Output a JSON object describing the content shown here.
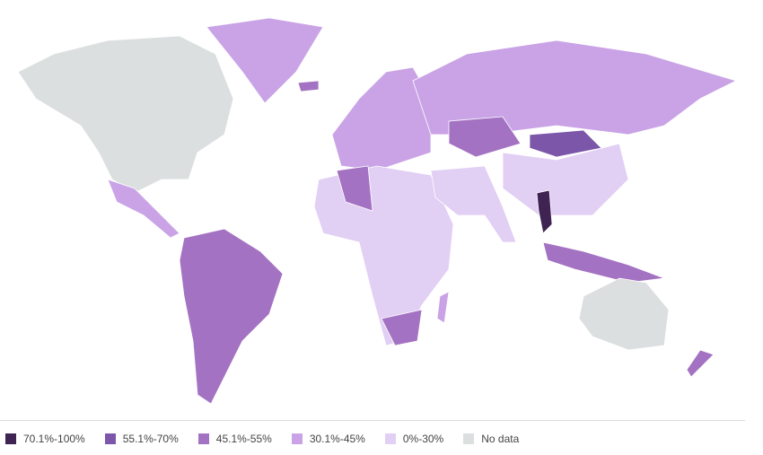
{
  "legend": {
    "items": [
      {
        "label": "70.1%-100%",
        "color": "#3f2352"
      },
      {
        "label": "55.1%-70%",
        "color": "#7b56a9"
      },
      {
        "label": "45.1%-55%",
        "color": "#a472c2"
      },
      {
        "label": "30.1%-45%",
        "color": "#c9a3e6"
      },
      {
        "label": "0%-30%",
        "color": "#e2cff4"
      },
      {
        "label": "No data",
        "color": "#dcdfe0"
      }
    ]
  }
}
